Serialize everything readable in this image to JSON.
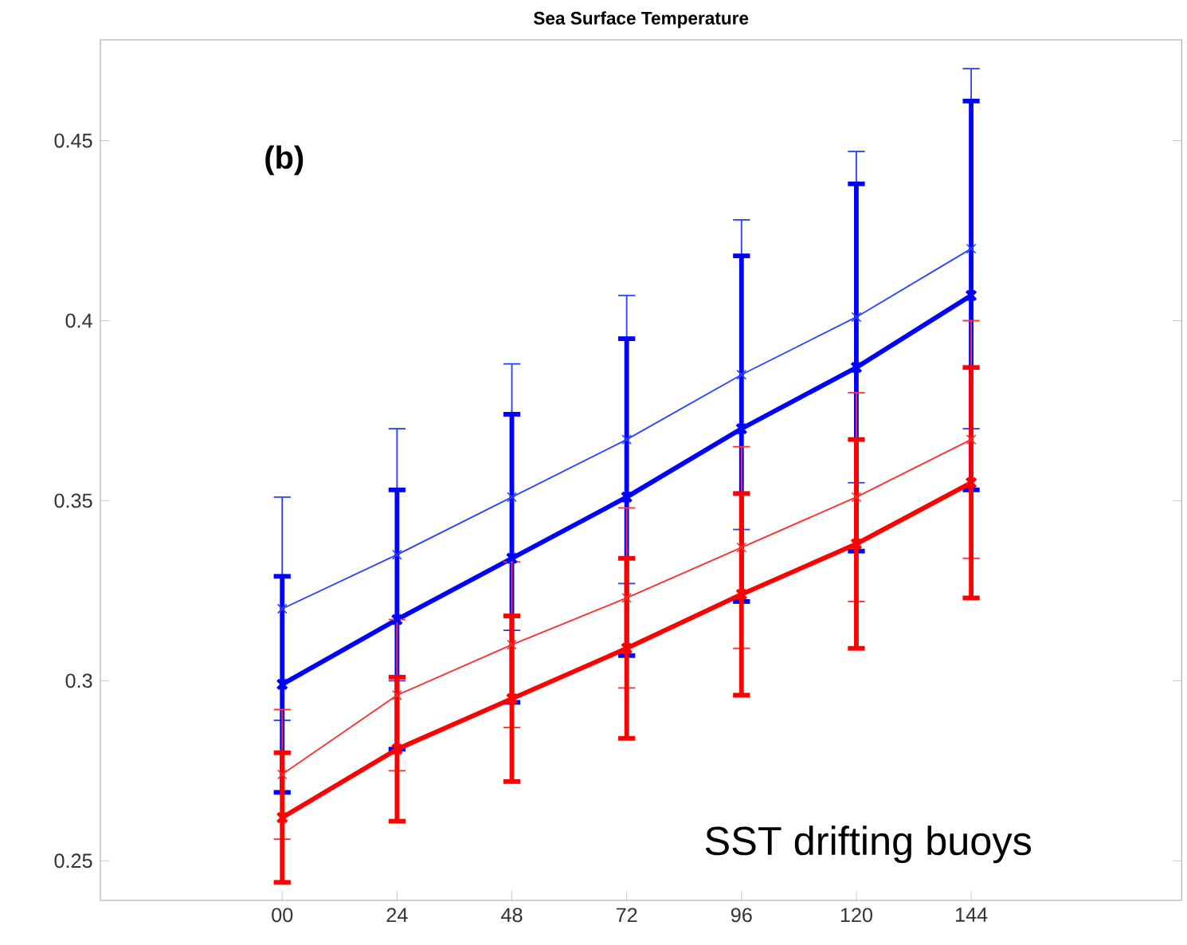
{
  "chart_data": {
    "type": "line",
    "title": "Sea Surface Temperature",
    "annotations": [
      "(b)",
      "SST drifting buoys"
    ],
    "x": [
      0,
      24,
      48,
      72,
      96,
      120,
      144
    ],
    "xlim": [
      -38,
      188
    ],
    "ylim": [
      0.239,
      0.478
    ],
    "xticks": [
      {
        "value": 0,
        "label": "00"
      },
      24,
      48,
      72,
      96,
      120,
      144
    ],
    "yticks": [
      0.25,
      0.3,
      0.35,
      0.4,
      0.45
    ],
    "marker": "cross",
    "grid": false,
    "series": [
      {
        "color": "#2a45ff",
        "values": [
          0.32,
          0.335,
          0.351,
          0.367,
          0.385,
          0.401,
          0.42
        ],
        "errors": [
          0.031,
          0.035,
          0.037,
          0.04,
          0.043,
          0.046,
          0.05
        ]
      },
      {
        "color": "#0000ff",
        "values": [
          0.299,
          0.317,
          0.334,
          0.351,
          0.37,
          0.387,
          0.407
        ],
        "errors": [
          0.03,
          0.036,
          0.04,
          0.044,
          0.048,
          0.051,
          0.054
        ]
      },
      {
        "color": "#ff3030",
        "values": [
          0.274,
          0.296,
          0.31,
          0.323,
          0.337,
          0.351,
          0.367
        ],
        "errors": [
          0.018,
          0.021,
          0.023,
          0.025,
          0.028,
          0.029,
          0.033
        ]
      },
      {
        "color": "#ff0000",
        "values": [
          0.262,
          0.281,
          0.295,
          0.309,
          0.324,
          0.338,
          0.355
        ],
        "errors": [
          0.018,
          0.02,
          0.023,
          0.025,
          0.028,
          0.029,
          0.032
        ]
      }
    ]
  }
}
